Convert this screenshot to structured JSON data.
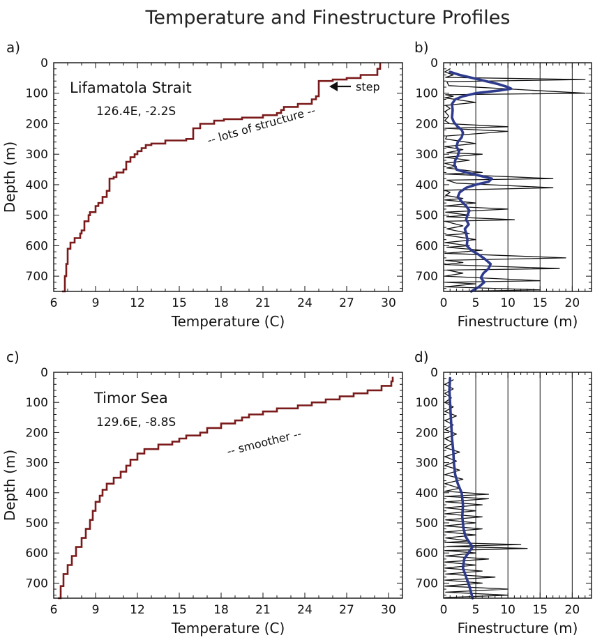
{
  "figure": {
    "title": "Temperature and Finestructure Profiles"
  },
  "chart_data": [
    {
      "id": "a",
      "type": "line",
      "panel_label": "a)",
      "location": "Lifamatola Strait",
      "coords": "126.4E, -2.2S",
      "annotations": [
        "step",
        "-- lots of structure --"
      ],
      "xlabel": "Temperature (C)",
      "ylabel": "Depth (m)",
      "xlim": [
        6,
        31
      ],
      "ylim": [
        750,
        0
      ],
      "xticks": [
        6,
        9,
        12,
        15,
        18,
        21,
        24,
        27,
        30
      ],
      "yticks": [
        0,
        100,
        200,
        300,
        400,
        500,
        600,
        700
      ],
      "color": "#7a1a1a",
      "x": [
        29.4,
        29.2,
        28.0,
        27.0,
        26.0,
        25.0,
        25.0,
        24.8,
        24.5,
        23.5,
        22.5,
        22.3,
        22.0,
        21.0,
        19.5,
        18.2,
        17.5,
        16.5,
        16.0,
        16.0,
        15.5,
        14.0,
        13.0,
        12.6,
        12.6,
        12.3,
        12.0,
        11.8,
        11.5,
        11.2,
        11.0,
        10.5,
        10.3,
        10.0,
        9.8,
        9.5,
        9.2,
        9.0,
        9.0,
        8.6,
        8.5,
        8.2,
        8.0,
        7.9,
        7.5,
        7.2,
        7.0,
        7.0,
        6.9,
        6.8,
        6.6
      ],
      "y": [
        0,
        20,
        40,
        50,
        55,
        60,
        105,
        110,
        120,
        135,
        145,
        155,
        165,
        172,
        180,
        185,
        190,
        200,
        215,
        245,
        250,
        255,
        265,
        270,
        275,
        280,
        290,
        300,
        310,
        325,
        350,
        360,
        375,
        380,
        420,
        440,
        460,
        470,
        480,
        490,
        500,
        520,
        550,
        560,
        575,
        590,
        610,
        630,
        660,
        700,
        750
      ]
    },
    {
      "id": "b",
      "type": "line",
      "panel_label": "b)",
      "xlabel": "Finestructure (m)",
      "xlim": [
        0,
        23
      ],
      "ylim": [
        750,
        0
      ],
      "xticks": [
        0,
        5,
        10,
        15,
        20
      ],
      "yticks": [
        0,
        100,
        200,
        300,
        400,
        500,
        600,
        700
      ],
      "grid_x": [
        5,
        10,
        15,
        20
      ],
      "series": [
        {
          "style": "raw",
          "color": "#111111",
          "points": [
            [
              1,
              20
            ],
            [
              0.2,
              30
            ],
            [
              1.5,
              40
            ],
            [
              0.3,
              48
            ],
            [
              22,
              55
            ],
            [
              0.5,
              62
            ],
            [
              0.8,
              75
            ],
            [
              22,
              100
            ],
            [
              0.3,
              105
            ],
            [
              1.5,
              110
            ],
            [
              0.2,
              115
            ],
            [
              5,
              130
            ],
            [
              0.3,
              140
            ],
            [
              1,
              150
            ],
            [
              0.2,
              160
            ],
            [
              0.8,
              175
            ],
            [
              0.2,
              190
            ],
            [
              1,
              200
            ],
            [
              10,
              210
            ],
            [
              0.2,
              215
            ],
            [
              10,
              225
            ],
            [
              0.5,
              240
            ],
            [
              0.3,
              250
            ],
            [
              5,
              265
            ],
            [
              0.2,
              275
            ],
            [
              3,
              285
            ],
            [
              0.5,
              295
            ],
            [
              6,
              300
            ],
            [
              0.2,
              310
            ],
            [
              4,
              320
            ],
            [
              0.2,
              330
            ],
            [
              2,
              340
            ],
            [
              0.5,
              345
            ],
            [
              6,
              360
            ],
            [
              0.2,
              365
            ],
            [
              17,
              380
            ],
            [
              0.5,
              385
            ],
            [
              2,
              395
            ],
            [
              17,
              410
            ],
            [
              0.2,
              418
            ],
            [
              1,
              425
            ],
            [
              0.3,
              435
            ],
            [
              3,
              445
            ],
            [
              0.2,
              450
            ],
            [
              5,
              460
            ],
            [
              0.2,
              470
            ],
            [
              10,
              480
            ],
            [
              0.3,
              490
            ],
            [
              4,
              500
            ],
            [
              0.5,
              505
            ],
            [
              11,
              515
            ],
            [
              0.2,
              520
            ],
            [
              3,
              535
            ],
            [
              0.5,
              545
            ],
            [
              4,
              560
            ],
            [
              0.3,
              565
            ],
            [
              5,
              580
            ],
            [
              0.2,
              590
            ],
            [
              4,
              600
            ],
            [
              0.5,
              605
            ],
            [
              6,
              615
            ],
            [
              0.2,
              625
            ],
            [
              19,
              640
            ],
            [
              0.3,
              648
            ],
            [
              3,
              655
            ],
            [
              0.2,
              662
            ],
            [
              18,
              675
            ],
            [
              0.5,
              680
            ],
            [
              3,
              690
            ],
            [
              0.2,
              700
            ],
            [
              15,
              715
            ],
            [
              0.3,
              720
            ],
            [
              5,
              725
            ],
            [
              0.2,
              735
            ],
            [
              15,
              745
            ],
            [
              0.5,
              750
            ]
          ]
        },
        {
          "style": "smoothed",
          "color": "#2e3a8c",
          "points": [
            [
              1.0,
              30
            ],
            [
              2.5,
              40
            ],
            [
              4.5,
              50
            ],
            [
              6.5,
              60
            ],
            [
              8.5,
              70
            ],
            [
              10.0,
              80
            ],
            [
              10.5,
              85
            ],
            [
              9.0,
              90
            ],
            [
              5.0,
              100
            ],
            [
              3.0,
              110
            ],
            [
              1.8,
              120
            ],
            [
              1.3,
              135
            ],
            [
              1.4,
              155
            ],
            [
              1.3,
              180
            ],
            [
              1.6,
              195
            ],
            [
              2.2,
              210
            ],
            [
              2.8,
              220
            ],
            [
              3.0,
              230
            ],
            [
              2.8,
              245
            ],
            [
              2.2,
              260
            ],
            [
              2.0,
              275
            ],
            [
              2.4,
              290
            ],
            [
              2.2,
              305
            ],
            [
              1.8,
              320
            ],
            [
              1.7,
              335
            ],
            [
              2.0,
              350
            ],
            [
              3.5,
              360
            ],
            [
              5.5,
              370
            ],
            [
              7.5,
              380
            ],
            [
              7.0,
              390
            ],
            [
              5.0,
              400
            ],
            [
              3.5,
              410
            ],
            [
              2.5,
              425
            ],
            [
              2.2,
              440
            ],
            [
              2.8,
              455
            ],
            [
              3.5,
              470
            ],
            [
              4.0,
              485
            ],
            [
              3.7,
              500
            ],
            [
              3.5,
              515
            ],
            [
              3.9,
              530
            ],
            [
              3.3,
              545
            ],
            [
              3.5,
              560
            ],
            [
              3.7,
              580
            ],
            [
              3.6,
              600
            ],
            [
              4.3,
              615
            ],
            [
              5.5,
              630
            ],
            [
              6.5,
              645
            ],
            [
              7.3,
              660
            ],
            [
              7.0,
              675
            ],
            [
              6.2,
              690
            ],
            [
              5.8,
              705
            ],
            [
              6.3,
              720
            ],
            [
              5.5,
              735
            ],
            [
              4.3,
              750
            ]
          ]
        }
      ]
    },
    {
      "id": "c",
      "type": "line",
      "panel_label": "c)",
      "location": "Timor Sea",
      "coords": "129.6E, -8.8S",
      "annotations": [
        "-- smoother --"
      ],
      "xlabel": "Temperature (C)",
      "ylabel": "Depth (m)",
      "xlim": [
        6,
        31
      ],
      "ylim": [
        750,
        0
      ],
      "xticks": [
        6,
        9,
        12,
        15,
        18,
        21,
        24,
        27,
        30
      ],
      "yticks": [
        0,
        100,
        200,
        300,
        400,
        500,
        600,
        700
      ],
      "color": "#7a1a1a",
      "x": [
        30.3,
        30.2,
        29.5,
        28.5,
        27.5,
        26.5,
        25.5,
        24.5,
        23.5,
        22.0,
        21.0,
        20.0,
        19.5,
        19.0,
        18.0,
        17.0,
        16.5,
        15.5,
        15.0,
        14.5,
        13.5,
        12.5,
        12.0,
        11.5,
        11.2,
        10.8,
        10.3,
        9.8,
        9.5,
        9.3,
        9.0,
        8.8,
        8.6,
        8.3,
        8.0,
        7.6,
        7.3,
        7.0,
        6.7,
        6.5,
        6.3
      ],
      "y": [
        15,
        30,
        45,
        60,
        70,
        80,
        90,
        100,
        110,
        120,
        130,
        140,
        150,
        160,
        170,
        185,
        200,
        210,
        220,
        230,
        240,
        255,
        270,
        290,
        310,
        330,
        350,
        370,
        390,
        410,
        430,
        460,
        490,
        520,
        550,
        580,
        610,
        640,
        670,
        710,
        750
      ]
    },
    {
      "id": "d",
      "type": "line",
      "panel_label": "d)",
      "xlabel": "Finestructure (m)",
      "xlim": [
        0,
        23
      ],
      "ylim": [
        750,
        0
      ],
      "xticks": [
        0,
        5,
        10,
        15,
        20
      ],
      "yticks": [
        0,
        100,
        200,
        300,
        400,
        500,
        600,
        700
      ],
      "grid_x": [
        5,
        10,
        15,
        20
      ],
      "series": [
        {
          "style": "raw",
          "color": "#111111",
          "points": [
            [
              1.5,
              25
            ],
            [
              0.2,
              40
            ],
            [
              1.5,
              55
            ],
            [
              0.2,
              70
            ],
            [
              1.2,
              85
            ],
            [
              0.2,
              100
            ],
            [
              1.5,
              115
            ],
            [
              0.2,
              130
            ],
            [
              2,
              145
            ],
            [
              0.2,
              160
            ],
            [
              1.5,
              175
            ],
            [
              0.2,
              190
            ],
            [
              2,
              205
            ],
            [
              0.2,
              220
            ],
            [
              1.5,
              235
            ],
            [
              0.2,
              250
            ],
            [
              2.5,
              265
            ],
            [
              0.2,
              280
            ],
            [
              2,
              295
            ],
            [
              0.2,
              310
            ],
            [
              2.5,
              325
            ],
            [
              0.2,
              340
            ],
            [
              3,
              355
            ],
            [
              0.2,
              370
            ],
            [
              2.5,
              385
            ],
            [
              0.2,
              395
            ],
            [
              7,
              405
            ],
            [
              0.2,
              412
            ],
            [
              7,
              420
            ],
            [
              0.3,
              430
            ],
            [
              6,
              440
            ],
            [
              0.2,
              450
            ],
            [
              5,
              460
            ],
            [
              0.2,
              470
            ],
            [
              6,
              480
            ],
            [
              0.3,
              490
            ],
            [
              5,
              500
            ],
            [
              0.2,
              510
            ],
            [
              6,
              520
            ],
            [
              0.2,
              530
            ],
            [
              5,
              540
            ],
            [
              0.3,
              550
            ],
            [
              4,
              560
            ],
            [
              0.2,
              565
            ],
            [
              12,
              572
            ],
            [
              0.5,
              578
            ],
            [
              13,
              585
            ],
            [
              0.2,
              592
            ],
            [
              5,
              600
            ],
            [
              0.3,
              610
            ],
            [
              7,
              620
            ],
            [
              0.2,
              630
            ],
            [
              5,
              640
            ],
            [
              0.2,
              650
            ],
            [
              6,
              660
            ],
            [
              0.3,
              670
            ],
            [
              8,
              680
            ],
            [
              0.2,
              690
            ],
            [
              6,
              700
            ],
            [
              0.2,
              710
            ],
            [
              10,
              720
            ],
            [
              0.3,
              730
            ],
            [
              10,
              740
            ],
            [
              0.2,
              748
            ]
          ]
        },
        {
          "style": "smoothed",
          "color": "#2e3a8c",
          "points": [
            [
              1.0,
              20
            ],
            [
              0.9,
              60
            ],
            [
              1.0,
              100
            ],
            [
              1.1,
              140
            ],
            [
              1.2,
              180
            ],
            [
              1.3,
              220
            ],
            [
              1.5,
              260
            ],
            [
              1.6,
              300
            ],
            [
              1.8,
              340
            ],
            [
              2.2,
              370
            ],
            [
              2.8,
              400
            ],
            [
              3.0,
              440
            ],
            [
              2.9,
              480
            ],
            [
              3.1,
              520
            ],
            [
              3.4,
              545
            ],
            [
              4.0,
              565
            ],
            [
              4.5,
              580
            ],
            [
              4.0,
              595
            ],
            [
              3.2,
              620
            ],
            [
              3.0,
              650
            ],
            [
              3.5,
              680
            ],
            [
              4.0,
              710
            ],
            [
              4.5,
              750
            ]
          ]
        }
      ]
    }
  ]
}
